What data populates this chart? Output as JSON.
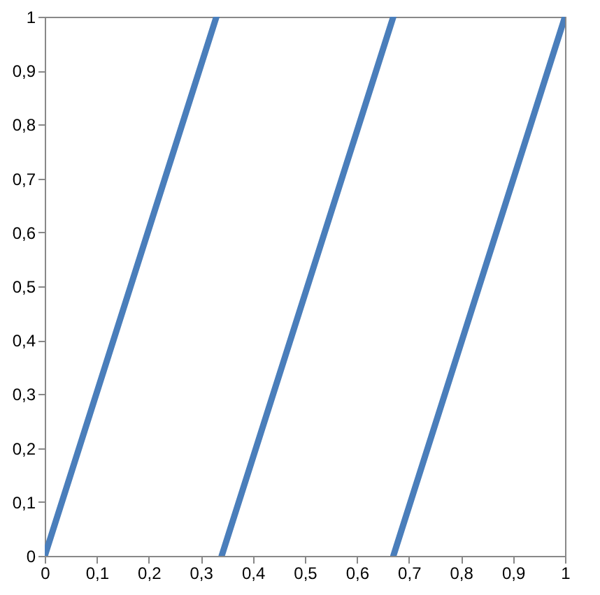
{
  "chart_data": {
    "type": "line",
    "series": [
      {
        "color": "#4a7ebb",
        "x": [
          0,
          0.33
        ],
        "values": [
          0,
          1
        ]
      },
      {
        "color": "#4a7ebb",
        "x": [
          0.34,
          0.67
        ],
        "values": [
          0,
          1
        ]
      },
      {
        "color": "#4a7ebb",
        "x": [
          0.67,
          1
        ],
        "values": [
          0,
          1
        ]
      }
    ],
    "xlim": [
      0,
      1
    ],
    "ylim": [
      0,
      1
    ],
    "xticks": [
      0,
      {
        "value": 0.1,
        "label": "0,1"
      },
      {
        "value": 0.2,
        "label": "0,2"
      },
      {
        "value": 0.3,
        "label": "0,3"
      },
      {
        "value": 0.4,
        "label": "0,4"
      },
      {
        "value": 0.5,
        "label": "0,5"
      },
      {
        "value": 0.6,
        "label": "0,6"
      },
      {
        "value": 0.7,
        "label": "0,7"
      },
      {
        "value": 0.8,
        "label": "0,8"
      },
      {
        "value": 0.9,
        "label": "0,9"
      },
      1
    ],
    "yticks": [
      0,
      {
        "value": 0.1,
        "label": "0,1"
      },
      {
        "value": 0.2,
        "label": "0,2"
      },
      {
        "value": 0.3,
        "label": "0,3"
      },
      {
        "value": 0.4,
        "label": "0,4"
      },
      {
        "value": 0.5,
        "label": "0,5"
      },
      {
        "value": 0.6,
        "label": "0,6"
      },
      {
        "value": 0.7,
        "label": "0,7"
      },
      {
        "value": 0.8,
        "label": "0,8"
      },
      {
        "value": 0.9,
        "label": "0,9"
      },
      1
    ],
    "grid": false,
    "legend": false
  }
}
